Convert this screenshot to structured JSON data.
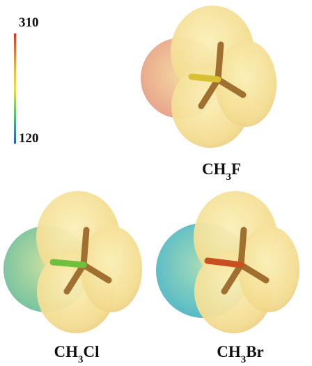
{
  "color_scale": {
    "max": 310,
    "min": 120
  },
  "molecules": [
    {
      "parts": [
        "CH",
        "3",
        "F"
      ]
    },
    {
      "parts": [
        "CH",
        "3",
        "Cl"
      ]
    },
    {
      "parts": [
        "CH",
        "3",
        "Br"
      ]
    }
  ]
}
